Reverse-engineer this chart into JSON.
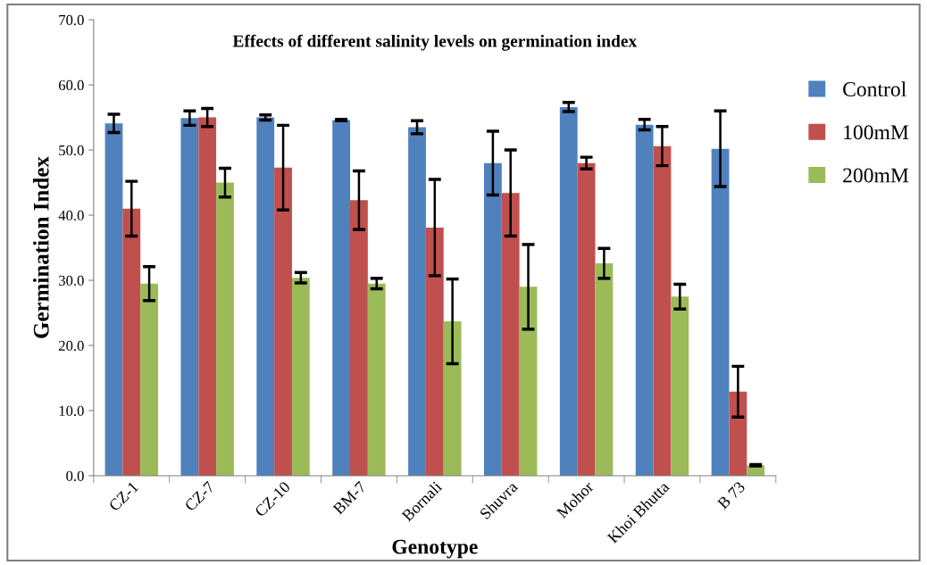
{
  "chart_data": {
    "type": "bar",
    "title": "Effects of different salinity levels on germination index",
    "xlabel": "Genotype",
    "ylabel": "Germination Index",
    "categories": [
      "CZ-1",
      "CZ-7",
      "CZ-10",
      "BM-7",
      "Bornali",
      "Shuvra",
      "Mohor",
      "Khoi Bhutta",
      "B 73"
    ],
    "series": [
      {
        "name": "Control",
        "color": "#4f81bd",
        "values": [
          54.1,
          54.9,
          55.0,
          54.6,
          53.5,
          48.0,
          56.6,
          53.9,
          50.2
        ],
        "errors": [
          1.4,
          1.1,
          0.4,
          0.1,
          1.0,
          4.9,
          0.7,
          0.8,
          5.8
        ]
      },
      {
        "name": "100mM",
        "color": "#c0504d",
        "values": [
          41.0,
          55.0,
          47.3,
          42.3,
          38.1,
          43.4,
          48.0,
          50.6,
          12.9
        ],
        "errors": [
          4.2,
          1.4,
          6.5,
          4.5,
          7.4,
          6.6,
          0.9,
          3.0,
          3.9
        ]
      },
      {
        "name": "200mM",
        "color": "#9bbb59",
        "values": [
          29.5,
          45.0,
          30.4,
          29.5,
          23.7,
          29.0,
          32.6,
          27.5,
          1.6
        ],
        "errors": [
          2.6,
          2.2,
          0.8,
          0.8,
          6.5,
          6.5,
          2.3,
          1.9,
          0.1
        ]
      }
    ],
    "ylim": [
      0,
      70
    ],
    "yticks": [
      {
        "value": 0,
        "label": "0.0"
      },
      {
        "value": 10,
        "label": "10.0"
      },
      {
        "value": 20,
        "label": "20.0"
      },
      {
        "value": 30,
        "label": "30.0"
      },
      {
        "value": 40,
        "label": "40.0"
      },
      {
        "value": 50,
        "label": "50.0"
      },
      {
        "value": 60,
        "label": "60.0"
      },
      {
        "value": 70,
        "label": "70.0"
      }
    ],
    "grid": false,
    "legend": "right"
  }
}
